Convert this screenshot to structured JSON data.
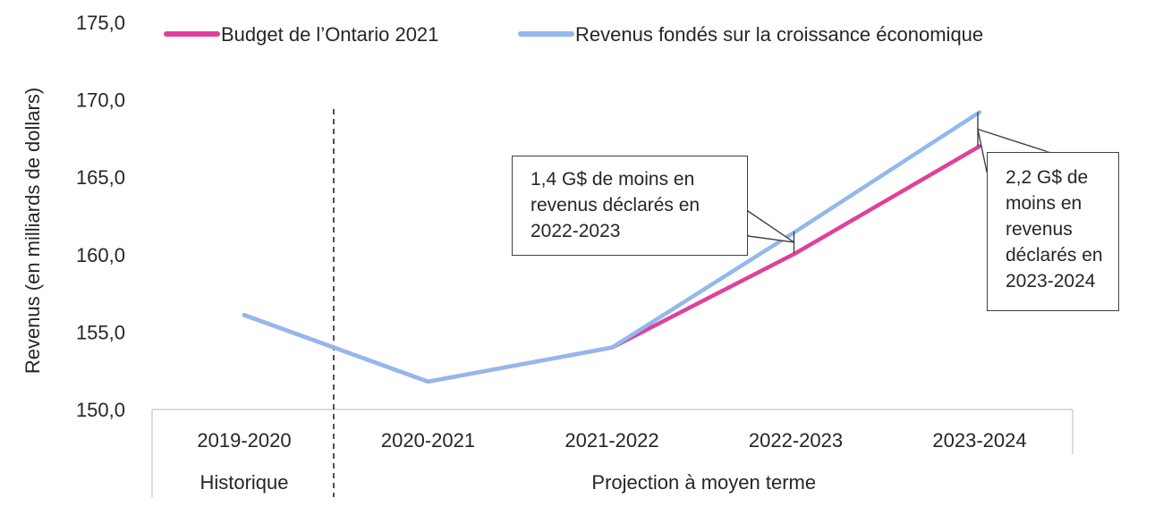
{
  "chart_data": {
    "type": "line",
    "categories": [
      "2019-2020",
      "2020-2021",
      "2021-2022",
      "2022-2023",
      "2023-2024"
    ],
    "series": [
      {
        "name": "Budget de l’Ontario 2021",
        "color": "#e0409a",
        "values": [
          156.1,
          151.8,
          154.0,
          160.1,
          167.0
        ]
      },
      {
        "name": "Revenus fondés sur la croissance économique",
        "color": "#93b8ec",
        "values": [
          156.1,
          151.8,
          154.0,
          161.5,
          169.2
        ]
      }
    ],
    "ylabel": "Revenus (en milliards de dollars)",
    "ylim": [
      150.0,
      175.0
    ],
    "yticks": [
      "150,0",
      "155,0",
      "160,0",
      "165,0",
      "170,0",
      "175,0"
    ],
    "groups": [
      {
        "label": "Historique",
        "categories": [
          "2019-2020"
        ]
      },
      {
        "label": "Projection à moyen terme",
        "categories": [
          "2020-2021",
          "2021-2022",
          "2022-2023",
          "2023-2024"
        ]
      }
    ],
    "legend_position": "top",
    "grid": false,
    "annotations": [
      {
        "category": "2022-2023",
        "lines": [
          "1,4 G$ de moins en",
          "revenus déclarés en",
          "2022-2023"
        ]
      },
      {
        "category": "2023-2024",
        "lines": [
          "2,2 G$ de",
          "moins en",
          "revenus",
          "déclarés en",
          "2023-2024"
        ]
      }
    ]
  }
}
